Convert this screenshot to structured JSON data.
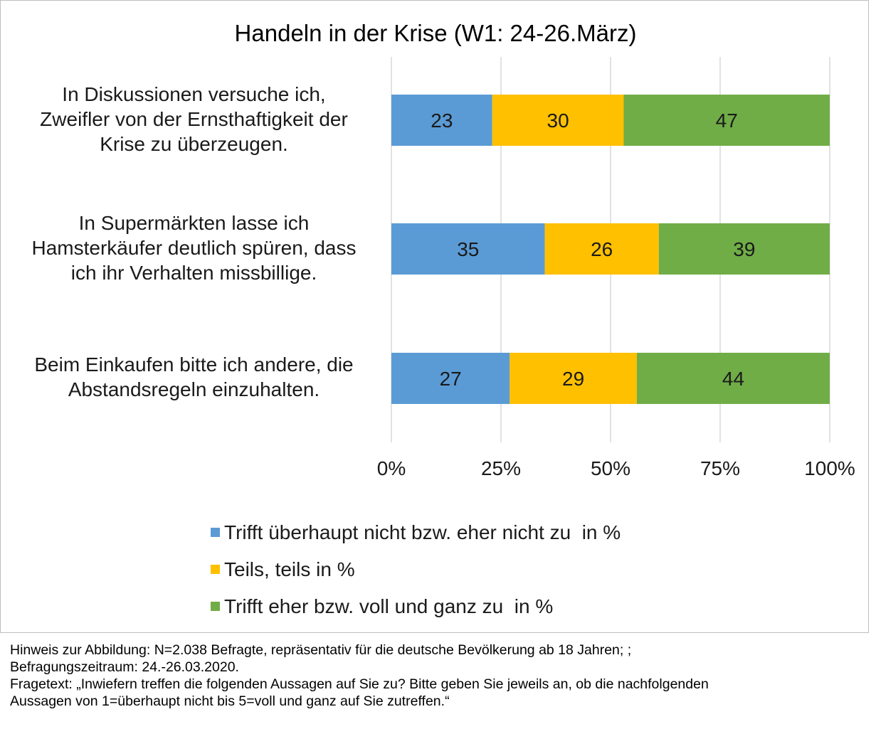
{
  "chart_data": {
    "type": "bar",
    "orientation": "horizontal",
    "stacked": true,
    "title": "Handeln in der Krise (W1: 24-26.März)",
    "categories": [
      [
        "In Diskussionen versuche ich,",
        "Zweifler von der Ernsthaftigkeit der",
        "Krise zu überzeugen."
      ],
      [
        "In Supermärkten lasse ich",
        "Hamsterkäufer deutlich spüren, dass",
        "ich ihr Verhalten missbillige."
      ],
      [
        "Beim Einkaufen bitte ich andere, die",
        "Abstandsregeln einzuhalten."
      ]
    ],
    "series": [
      {
        "name": "Trifft überhaupt nicht bzw. eher nicht zu  in %",
        "color": "#5b9bd5",
        "values": [
          23,
          35,
          27
        ]
      },
      {
        "name": "Teils, teils in %",
        "color": "#ffc000",
        "values": [
          30,
          26,
          29
        ]
      },
      {
        "name": "Trifft eher bzw. voll und ganz zu  in %",
        "color": "#70ad47",
        "values": [
          47,
          39,
          44
        ]
      }
    ],
    "xlim": [
      0,
      100
    ],
    "xticks": [
      "0%",
      "25%",
      "50%",
      "75%",
      "100%"
    ],
    "grid": true,
    "legend_position": "bottom"
  },
  "note": {
    "lines": [
      "Hinweis zur Abbildung: N=2.038 Befragte, repräsentativ für die deutsche Bevölkerung ab 18 Jahren; ;",
      "Befragungszeitraum: 24.-26.03.2020.",
      "Fragetext: „Inwiefern treffen die folgenden Aussagen auf Sie zu? Bitte geben Sie jeweils an, ob die nachfolgenden",
      "Aussagen von 1=überhaupt nicht bis 5=voll und ganz auf Sie zutreffen.“"
    ]
  }
}
